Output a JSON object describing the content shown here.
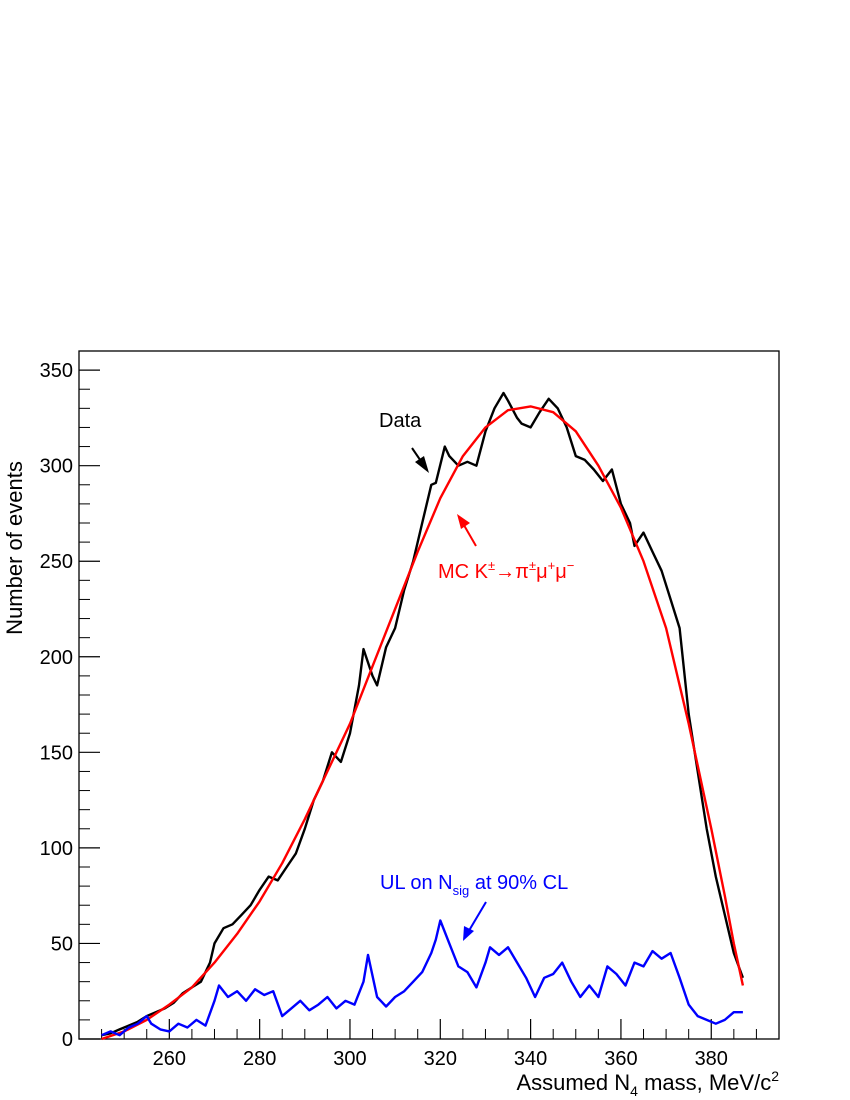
{
  "chart_data": {
    "type": "line",
    "xlabel": "Assumed N",
    "xlabel_sub": "4",
    "xlabel_rest": " mass, MeV/c",
    "xlabel_sup": "2",
    "ylabel": "Number of events",
    "xlim": [
      240,
      395
    ],
    "ylim": [
      0,
      360
    ],
    "x_ticks": [
      260,
      280,
      300,
      320,
      340,
      360,
      380
    ],
    "y_ticks": [
      0,
      50,
      100,
      150,
      200,
      250,
      300,
      350
    ],
    "grid": false,
    "series": [
      {
        "name": "Data",
        "color": "#000000",
        "points": [
          [
            245,
            2
          ],
          [
            247,
            3
          ],
          [
            249,
            5
          ],
          [
            251,
            7
          ],
          [
            253,
            9
          ],
          [
            255,
            12
          ],
          [
            257,
            14
          ],
          [
            259,
            16
          ],
          [
            261,
            19
          ],
          [
            263,
            24
          ],
          [
            265,
            27
          ],
          [
            267,
            30
          ],
          [
            269,
            40
          ],
          [
            270,
            50
          ],
          [
            272,
            58
          ],
          [
            274,
            60
          ],
          [
            276,
            65
          ],
          [
            278,
            70
          ],
          [
            280,
            78
          ],
          [
            282,
            85
          ],
          [
            284,
            83
          ],
          [
            286,
            90
          ],
          [
            288,
            97
          ],
          [
            290,
            110
          ],
          [
            292,
            125
          ],
          [
            294,
            135
          ],
          [
            296,
            150
          ],
          [
            298,
            145
          ],
          [
            300,
            160
          ],
          [
            302,
            185
          ],
          [
            303,
            204
          ],
          [
            305,
            190
          ],
          [
            306,
            185
          ],
          [
            308,
            205
          ],
          [
            310,
            215
          ],
          [
            312,
            235
          ],
          [
            314,
            250
          ],
          [
            316,
            270
          ],
          [
            318,
            290
          ],
          [
            319,
            291
          ],
          [
            321,
            310
          ],
          [
            322,
            305
          ],
          [
            324,
            300
          ],
          [
            326,
            302
          ],
          [
            328,
            300
          ],
          [
            330,
            318
          ],
          [
            332,
            330
          ],
          [
            334,
            338
          ],
          [
            335,
            334
          ],
          [
            337,
            325
          ],
          [
            338,
            322
          ],
          [
            340,
            320
          ],
          [
            342,
            328
          ],
          [
            344,
            335
          ],
          [
            346,
            330
          ],
          [
            348,
            320
          ],
          [
            350,
            305
          ],
          [
            352,
            303
          ],
          [
            354,
            298
          ],
          [
            356,
            292
          ],
          [
            358,
            298
          ],
          [
            360,
            280
          ],
          [
            362,
            270
          ],
          [
            363,
            258
          ],
          [
            365,
            265
          ],
          [
            367,
            255
          ],
          [
            369,
            245
          ],
          [
            371,
            230
          ],
          [
            373,
            215
          ],
          [
            375,
            170
          ],
          [
            377,
            140
          ],
          [
            379,
            110
          ],
          [
            381,
            85
          ],
          [
            383,
            65
          ],
          [
            385,
            45
          ],
          [
            387,
            32
          ]
        ]
      },
      {
        "name": "MC K±→π±μ⁺μ⁻",
        "color": "#ff0000",
        "points": [
          [
            245,
            0
          ],
          [
            250,
            4
          ],
          [
            255,
            10
          ],
          [
            260,
            18
          ],
          [
            265,
            27
          ],
          [
            270,
            40
          ],
          [
            275,
            55
          ],
          [
            280,
            72
          ],
          [
            285,
            92
          ],
          [
            290,
            115
          ],
          [
            295,
            140
          ],
          [
            300,
            165
          ],
          [
            305,
            195
          ],
          [
            310,
            225
          ],
          [
            315,
            255
          ],
          [
            320,
            283
          ],
          [
            325,
            305
          ],
          [
            330,
            320
          ],
          [
            335,
            329
          ],
          [
            340,
            331
          ],
          [
            345,
            328
          ],
          [
            350,
            318
          ],
          [
            355,
            300
          ],
          [
            360,
            278
          ],
          [
            365,
            250
          ],
          [
            370,
            215
          ],
          [
            375,
            165
          ],
          [
            380,
            110
          ],
          [
            383,
            75
          ],
          [
            385,
            50
          ],
          [
            387,
            28
          ]
        ]
      },
      {
        "name": "UL on N sig at 90% CL",
        "color": "#0000ff",
        "points": [
          [
            245,
            2
          ],
          [
            247,
            4
          ],
          [
            249,
            2
          ],
          [
            251,
            6
          ],
          [
            253,
            8
          ],
          [
            255,
            12
          ],
          [
            256,
            8
          ],
          [
            258,
            5
          ],
          [
            260,
            4
          ],
          [
            262,
            8
          ],
          [
            264,
            6
          ],
          [
            266,
            10
          ],
          [
            268,
            7
          ],
          [
            270,
            20
          ],
          [
            271,
            28
          ],
          [
            273,
            22
          ],
          [
            275,
            25
          ],
          [
            277,
            20
          ],
          [
            279,
            26
          ],
          [
            281,
            23
          ],
          [
            283,
            25
          ],
          [
            285,
            12
          ],
          [
            287,
            16
          ],
          [
            289,
            20
          ],
          [
            291,
            15
          ],
          [
            293,
            18
          ],
          [
            295,
            22
          ],
          [
            297,
            16
          ],
          [
            299,
            20
          ],
          [
            301,
            18
          ],
          [
            303,
            30
          ],
          [
            304,
            44
          ],
          [
            306,
            22
          ],
          [
            308,
            17
          ],
          [
            310,
            22
          ],
          [
            312,
            25
          ],
          [
            314,
            30
          ],
          [
            316,
            35
          ],
          [
            318,
            45
          ],
          [
            319,
            52
          ],
          [
            320,
            62
          ],
          [
            322,
            50
          ],
          [
            324,
            38
          ],
          [
            326,
            35
          ],
          [
            328,
            27
          ],
          [
            330,
            40
          ],
          [
            331,
            48
          ],
          [
            333,
            44
          ],
          [
            335,
            48
          ],
          [
            337,
            40
          ],
          [
            339,
            32
          ],
          [
            341,
            22
          ],
          [
            343,
            32
          ],
          [
            345,
            34
          ],
          [
            347,
            40
          ],
          [
            349,
            30
          ],
          [
            351,
            22
          ],
          [
            353,
            28
          ],
          [
            355,
            22
          ],
          [
            357,
            38
          ],
          [
            359,
            34
          ],
          [
            361,
            28
          ],
          [
            363,
            40
          ],
          [
            365,
            38
          ],
          [
            367,
            46
          ],
          [
            369,
            42
          ],
          [
            371,
            45
          ],
          [
            373,
            32
          ],
          [
            375,
            18
          ],
          [
            377,
            12
          ],
          [
            379,
            10
          ],
          [
            381,
            8
          ],
          [
            383,
            10
          ],
          [
            385,
            14
          ],
          [
            387,
            14
          ]
        ]
      }
    ],
    "annotations": {
      "data_label": "Data",
      "mc_label_prefix": "MC K",
      "mc_sup1": "±",
      "mc_arrow": "→π",
      "mc_sup2": "±",
      "mc_mu1": "μ",
      "mc_sup3": "+",
      "mc_mu2": "μ",
      "mc_sup4": "−",
      "ul_prefix": "UL on N",
      "ul_sub": "sig",
      "ul_suffix": " at 90% CL"
    }
  }
}
